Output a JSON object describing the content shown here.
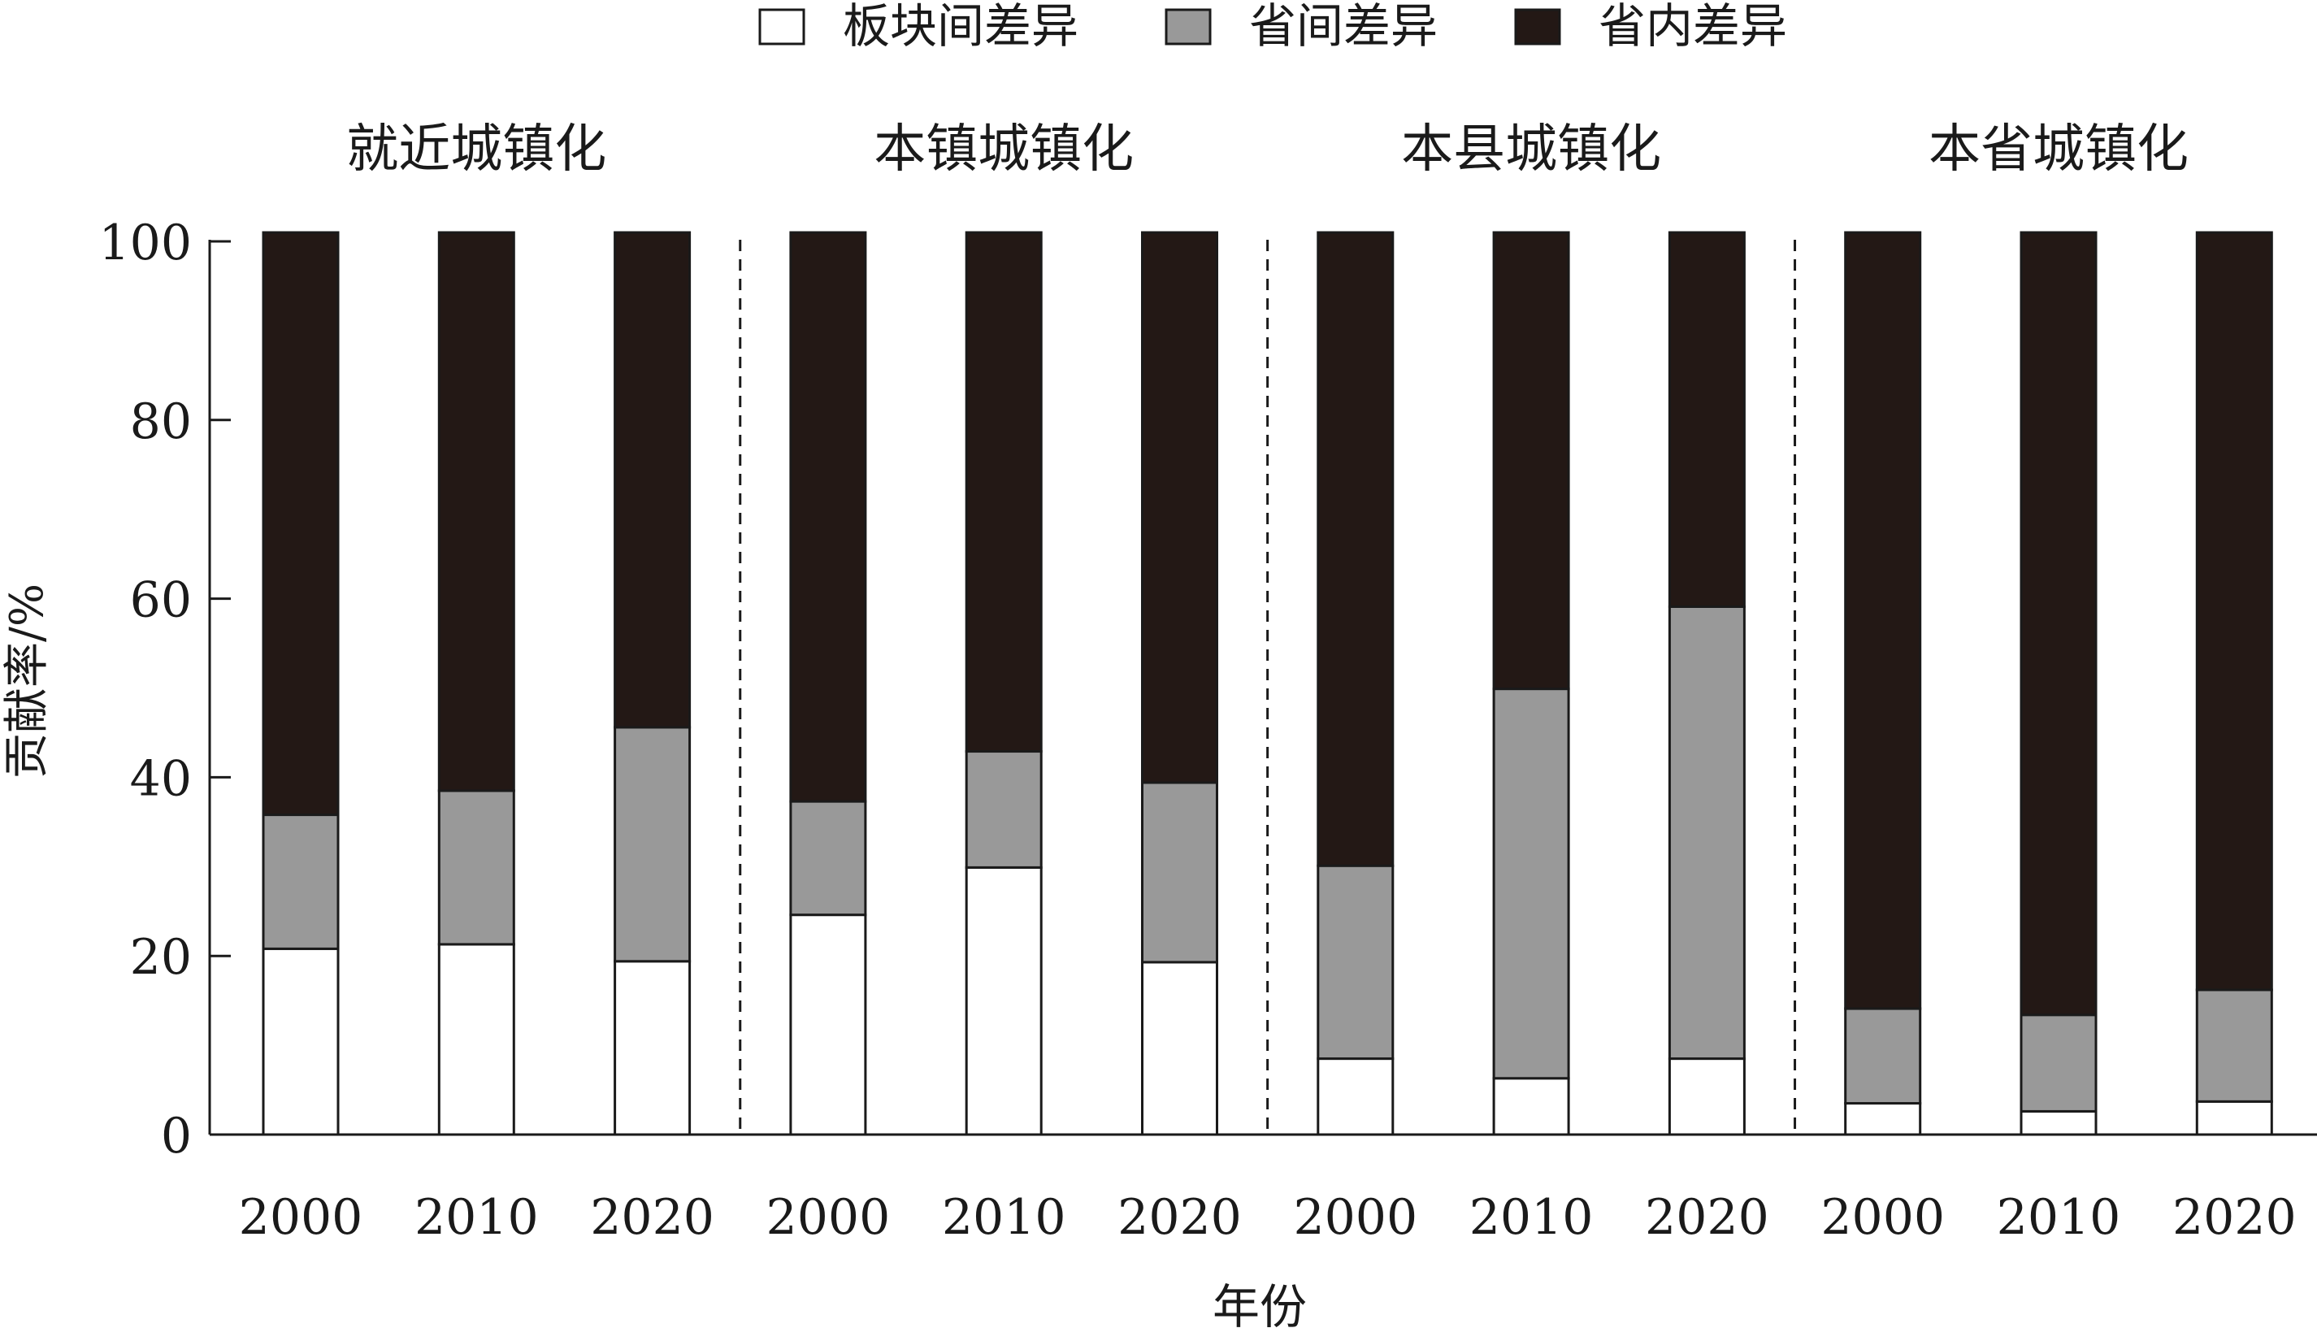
{
  "chart_data": {
    "type": "bar",
    "stacked": true,
    "ylabel": "贡献率/%",
    "xlabel": "年份",
    "ylim": [
      0,
      100
    ],
    "yticks": [
      0,
      20,
      40,
      60,
      80,
      100
    ],
    "legend": {
      "placement": "top-center",
      "items": [
        "板块间差异",
        "省间差异",
        "省内差异"
      ]
    },
    "series": [
      {
        "name": "板块间差异",
        "color": "#ffffff"
      },
      {
        "name": "省间差异",
        "color": "#999999"
      },
      {
        "name": "省内差异",
        "color": "#231815"
      }
    ],
    "groups": [
      {
        "label": "就近城镇化",
        "categories": [
          "2000",
          "2010",
          "2020"
        ],
        "values": [
          [
            20.8,
            15.0,
            65.2
          ],
          [
            21.3,
            17.2,
            62.5
          ],
          [
            19.4,
            26.2,
            55.4
          ]
        ]
      },
      {
        "label": "本镇城镇化",
        "categories": [
          "2000",
          "2010",
          "2020"
        ],
        "values": [
          [
            24.6,
            12.7,
            63.7
          ],
          [
            29.9,
            13.0,
            58.1
          ],
          [
            19.3,
            20.1,
            61.6
          ]
        ]
      },
      {
        "label": "本县城镇化",
        "categories": [
          "2000",
          "2010",
          "2020"
        ],
        "values": [
          [
            8.5,
            21.6,
            70.9
          ],
          [
            6.3,
            43.6,
            51.1
          ],
          [
            8.5,
            50.6,
            41.9
          ]
        ]
      },
      {
        "label": "本省城镇化",
        "categories": [
          "2000",
          "2010",
          "2020"
        ],
        "values": [
          [
            3.5,
            10.6,
            86.9
          ],
          [
            2.6,
            10.8,
            87.6
          ],
          [
            3.7,
            12.5,
            84.8
          ]
        ]
      }
    ]
  }
}
